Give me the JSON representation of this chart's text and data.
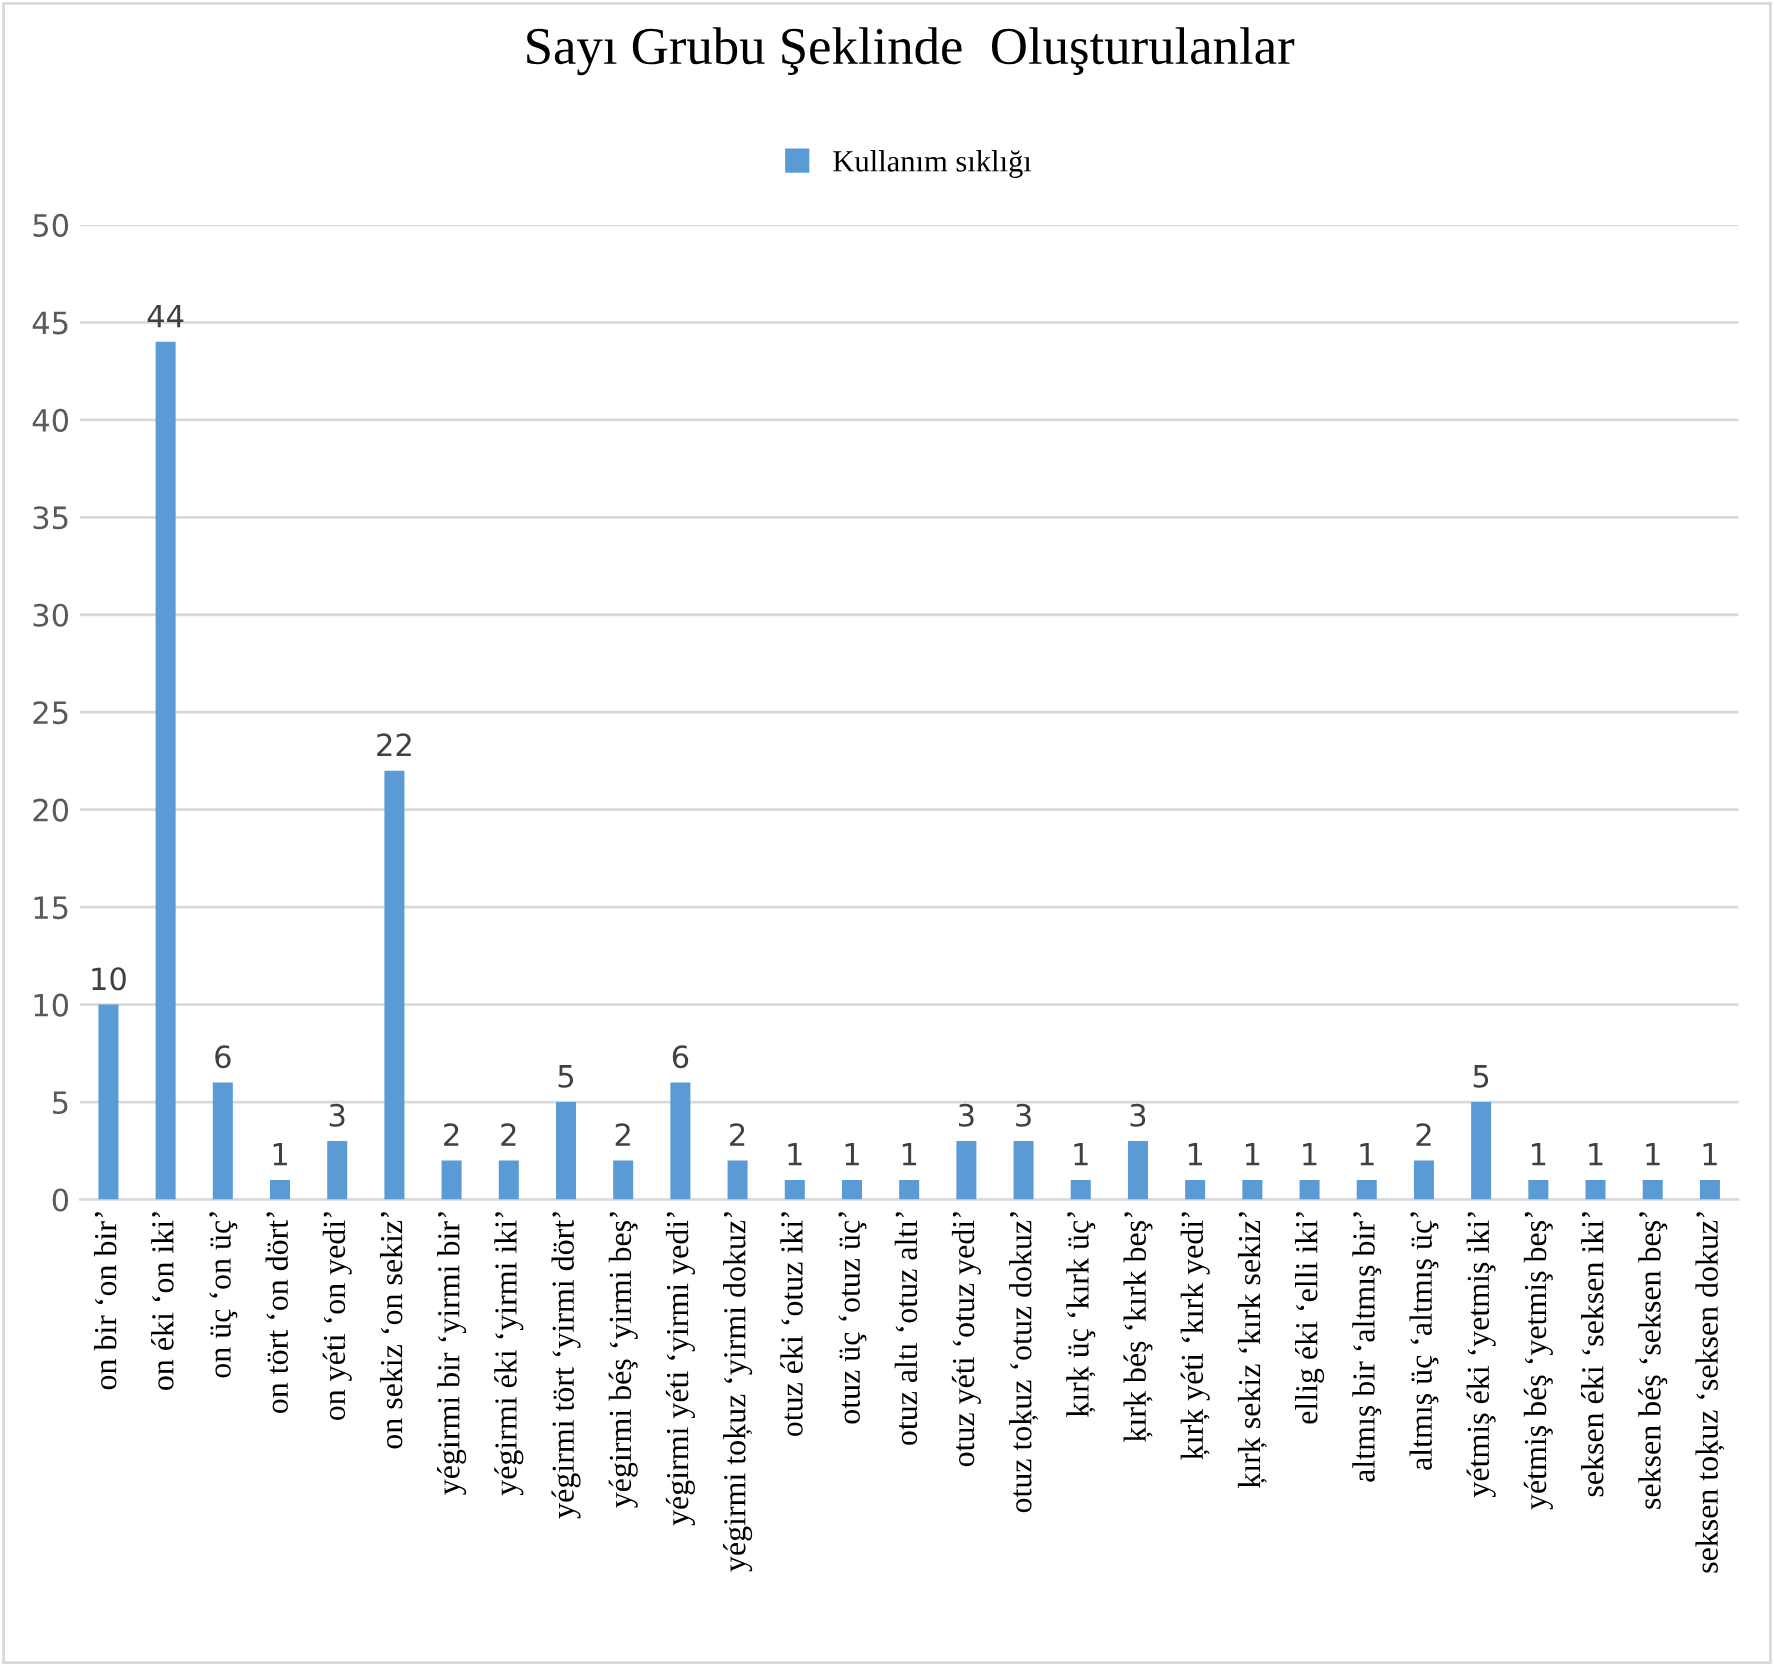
{
  "chart_data": {
    "type": "bar",
    "title": "Sayı Grubu Şeklinde  Oluşturulanlar",
    "categories": [
      "on bir ‘on bir’",
      "on éki ‘on iki’",
      "on üç ‘on üç’",
      "on tört ‘on dört’",
      "on yéti ‘on yedi’",
      "on sekiz ‘on sekiz’",
      "yégirmi bir ‘yirmi bir’",
      "yégirmi éki ‘yirmi iki’",
      "yégirmi tört ‘yirmi dört’",
      "yégirmi béş ‘yirmi beş’",
      "yégirmi yéti ‘yirmi yedi’",
      "yégirmi toķuz ‘yirmi dokuz’",
      "otuz éki ‘otuz iki’",
      "otuz üç ‘otuz üç’",
      "otuz altı ‘otuz altı’",
      "otuz yéti ‘otuz yedi’",
      "otuz toķuz ‘otuz dokuz’",
      "ķırķ üç ‘kırk üç’",
      "ķırķ béş ‘kırk beş’",
      "ķırķ yéti ‘kırk yedi’",
      "ķırķ sekiz ‘kırk sekiz’",
      "ellig éki ‘elli iki’",
      "altmış bir ‘altmış bir’",
      "altmış üç ‘altmış üç’",
      "yétmiş éki ‘yetmiş iki’",
      "yétmiş béş ‘yetmiş beş’",
      "seksen éki ‘seksen iki’",
      "seksen béş ‘seksen beş’",
      "seksen toķuz ‘seksen dokuz’"
    ],
    "series": [
      {
        "name": "Kullanım sıklığı",
        "color": "#5b9bd5",
        "values": [
          10,
          44,
          6,
          1,
          3,
          22,
          2,
          2,
          5,
          2,
          6,
          2,
          1,
          1,
          1,
          3,
          3,
          1,
          3,
          1,
          1,
          1,
          1,
          2,
          5,
          1,
          1,
          1,
          1
        ]
      }
    ],
    "ylim": [
      0,
      50
    ],
    "yticks": [
      0,
      5,
      10,
      15,
      20,
      25,
      30,
      35,
      40,
      45,
      50
    ],
    "grid": "y",
    "legend": "top",
    "data_labels": true
  }
}
